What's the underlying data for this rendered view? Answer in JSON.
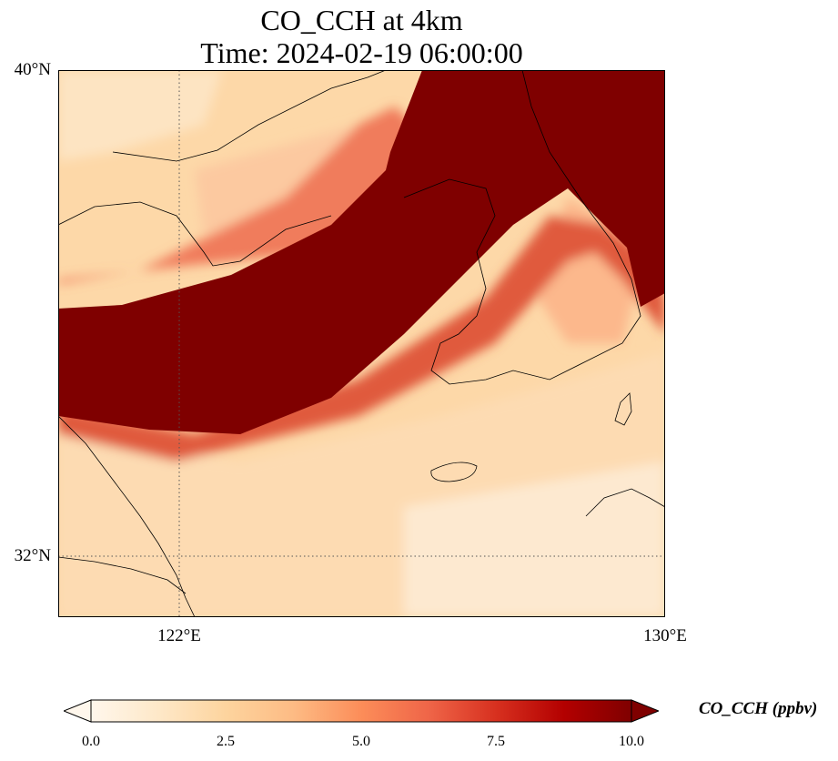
{
  "title_line1": "CO_CCH at 4km",
  "title_line2": "Time: 2024-02-19 06:00:00",
  "map": {
    "variable": "CO_CCH",
    "level": "4km",
    "lat_range": [
      31.0,
      40.0
    ],
    "lon_range": [
      120.0,
      130.0
    ],
    "lat_ticks": [
      {
        "value": 40,
        "label": "40°N"
      },
      {
        "value": 32,
        "label": "32°N"
      }
    ],
    "lon_ticks": [
      {
        "value": 122,
        "label": "122°E"
      },
      {
        "value": 130,
        "label": "130°E"
      }
    ],
    "gridlines": "dotted"
  },
  "colorbar": {
    "label": "CO_CCH (ppbv)",
    "min": 0.0,
    "max": 10.0,
    "extend": "both",
    "ticks": [
      "0.0",
      "2.5",
      "5.0",
      "7.5",
      "10.0"
    ],
    "colormap": [
      "#fff7ec",
      "#fee8c8",
      "#fdd49e",
      "#fdbb84",
      "#fc8d59",
      "#ef6548",
      "#d7301f",
      "#b30000",
      "#7f0000"
    ]
  }
}
